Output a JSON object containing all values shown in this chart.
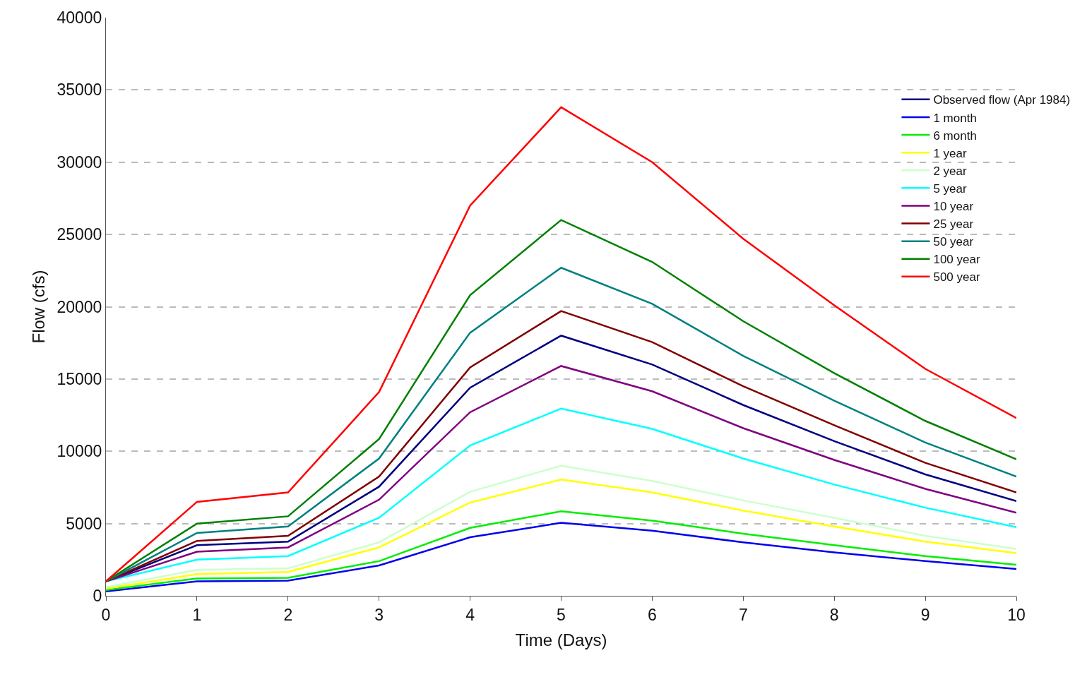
{
  "chart_data": {
    "type": "line",
    "xlabel": "Time (Days)",
    "ylabel": "Flow (cfs)",
    "x": [
      0,
      1,
      2,
      3,
      4,
      5,
      6,
      7,
      8,
      9,
      10
    ],
    "xlim": [
      0,
      10
    ],
    "xticks": [
      0,
      1,
      2,
      3,
      4,
      5,
      6,
      7,
      8,
      9,
      10
    ],
    "ylim": [
      0,
      40000
    ],
    "yticks": [
      0,
      5000,
      10000,
      15000,
      20000,
      25000,
      30000,
      35000,
      40000
    ],
    "grid": "y",
    "legend": "top right",
    "marker": "none",
    "line_style": "solid",
    "series": [
      {
        "name": "Observed flow (Apr 1984)",
        "color": "#000080",
        "values": [
          1000,
          3500,
          3750,
          7550,
          14400,
          18000,
          16000,
          13200,
          10700,
          8400,
          6550
        ]
      },
      {
        "name": "1 month",
        "color": "#0000ee",
        "values": [
          300,
          1000,
          1050,
          2100,
          4050,
          5050,
          4500,
          3700,
          3000,
          2400,
          1850
        ]
      },
      {
        "name": "6 month",
        "color": "#00ee00",
        "values": [
          400,
          1200,
          1250,
          2400,
          4700,
          5850,
          5200,
          4300,
          3500,
          2750,
          2150
        ]
      },
      {
        "name": "1 year",
        "color": "#ffff00",
        "values": [
          500,
          1500,
          1650,
          3350,
          6450,
          8050,
          7150,
          5900,
          4800,
          3750,
          2950
        ]
      },
      {
        "name": "2 year",
        "color": "#ccffcc",
        "values": [
          600,
          1800,
          1900,
          3700,
          7200,
          9000,
          7950,
          6600,
          5400,
          4150,
          3250
        ]
      },
      {
        "name": "5 year",
        "color": "#00ffff",
        "values": [
          1000,
          2500,
          2750,
          5400,
          10400,
          12950,
          11550,
          9500,
          7700,
          6100,
          4750
        ]
      },
      {
        "name": "10 year",
        "color": "#800080",
        "values": [
          1000,
          3050,
          3350,
          6650,
          12700,
          15900,
          14150,
          11600,
          9400,
          7400,
          5750
        ]
      },
      {
        "name": "25 year",
        "color": "#800000",
        "values": [
          1000,
          3800,
          4150,
          8250,
          15800,
          19700,
          17550,
          14500,
          11800,
          9200,
          7150
        ]
      },
      {
        "name": "50 year",
        "color": "#008080",
        "values": [
          1000,
          4350,
          4800,
          9500,
          18200,
          22700,
          20200,
          16600,
          13500,
          10600,
          8250
        ]
      },
      {
        "name": "100 year",
        "color": "#008000",
        "values": [
          1000,
          5000,
          5500,
          10850,
          20800,
          26000,
          23100,
          19000,
          15400,
          12100,
          9450
        ]
      },
      {
        "name": "500 year",
        "color": "#ff0000",
        "values": [
          1000,
          6500,
          7150,
          14100,
          27000,
          33800,
          30000,
          24700,
          20100,
          15700,
          12300
        ]
      }
    ]
  }
}
